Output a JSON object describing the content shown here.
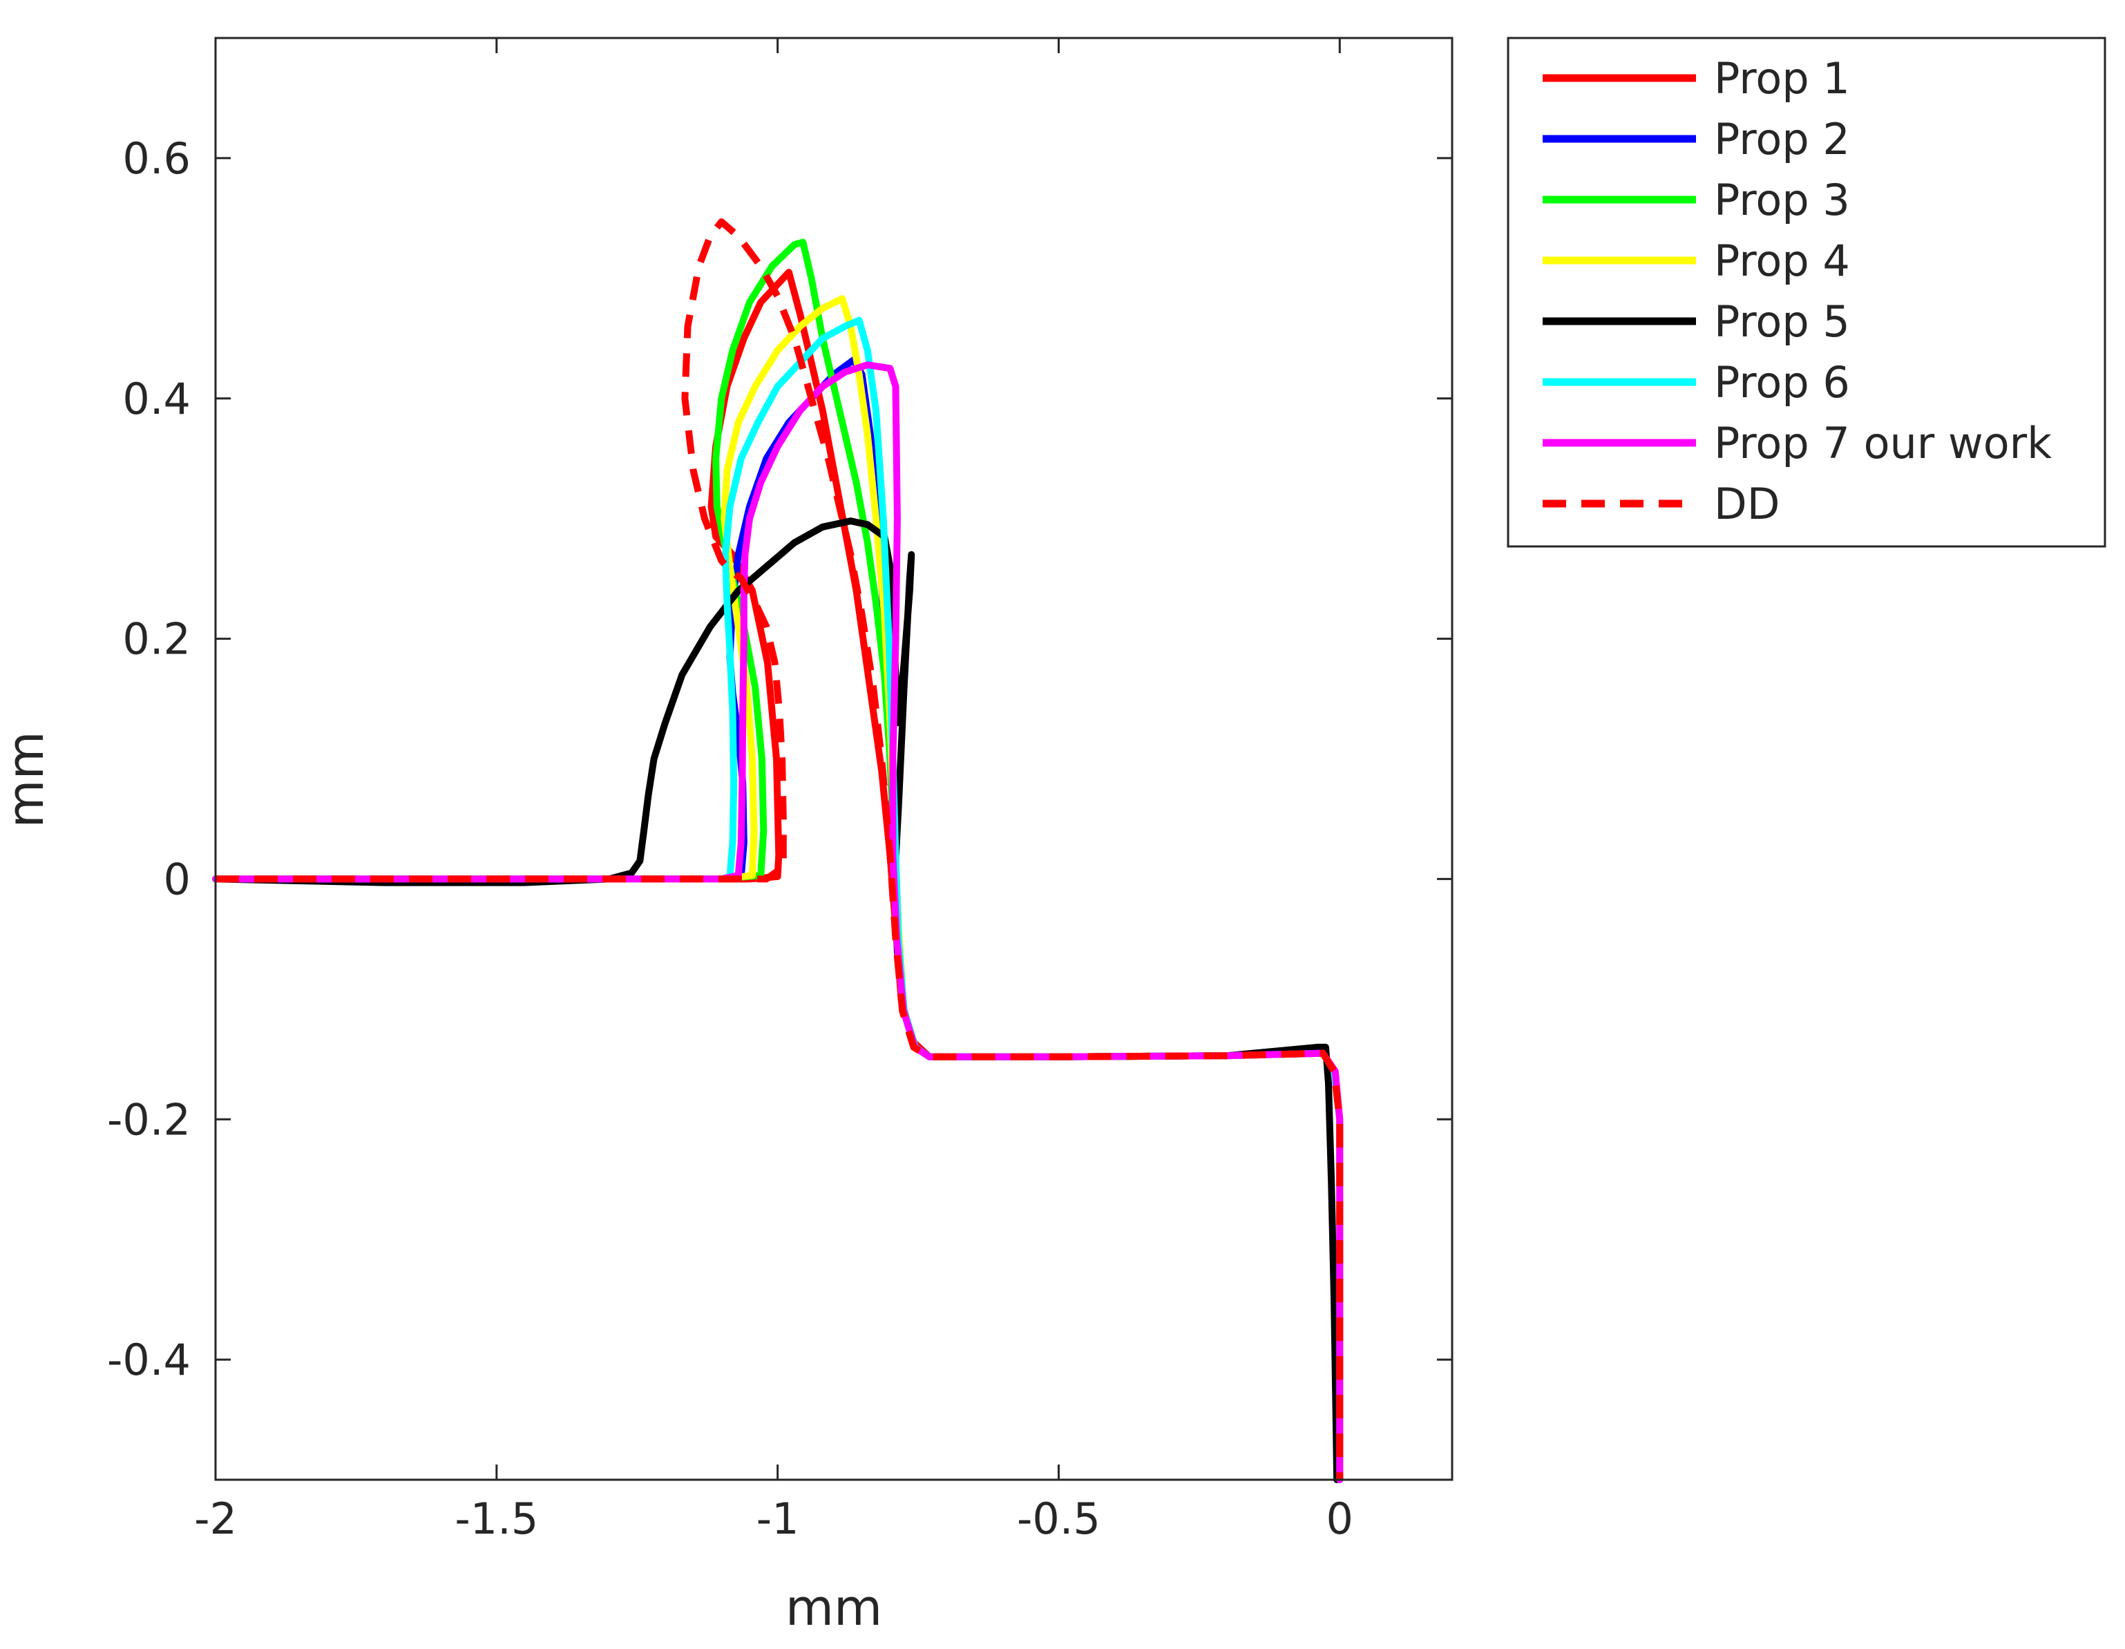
{
  "chart_data": {
    "type": "line",
    "title": "",
    "xlabel": "mm",
    "ylabel": "mm",
    "xlim": [
      -2,
      0.2
    ],
    "ylim": [
      -0.5,
      0.7
    ],
    "xticks": [
      -2,
      -1.5,
      -1,
      -0.5,
      0
    ],
    "xtick_labels": [
      "-2",
      "-1.5",
      "-1",
      "-0.5",
      "0"
    ],
    "yticks": [
      -0.4,
      -0.2,
      0,
      0.2,
      0.4,
      0.6
    ],
    "ytick_labels": [
      "-0.4",
      "-0.2",
      "0",
      "0.2",
      "0.4",
      "0.6"
    ],
    "grid": false,
    "legend_position": "outside-top-right",
    "series": [
      {
        "name": "Prop 1",
        "color": "#ff0000",
        "dash": "solid",
        "points": [
          [
            -2,
            0
          ],
          [
            -1.5,
            0
          ],
          [
            -1.2,
            0
          ],
          [
            -1.05,
            0
          ],
          [
            -1,
            0.002
          ],
          [
            -0.998,
            0.02
          ],
          [
            -1.002,
            0.1
          ],
          [
            -1.018,
            0.18
          ],
          [
            -1.045,
            0.24
          ],
          [
            -1.08,
            0.27
          ],
          [
            -1.11,
            0.285
          ],
          [
            -1.118,
            0.31
          ],
          [
            -1.11,
            0.36
          ],
          [
            -1.09,
            0.41
          ],
          [
            -1.06,
            0.45
          ],
          [
            -1.03,
            0.48
          ],
          [
            -1,
            0.495
          ],
          [
            -0.98,
            0.505
          ],
          [
            -0.96,
            0.47
          ],
          [
            -0.94,
            0.43
          ],
          [
            -0.92,
            0.39
          ],
          [
            -0.9,
            0.34
          ],
          [
            -0.88,
            0.29
          ],
          [
            -0.86,
            0.24
          ],
          [
            -0.845,
            0.19
          ],
          [
            -0.83,
            0.14
          ],
          [
            -0.815,
            0.09
          ],
          [
            -0.8,
            0.02
          ],
          [
            -0.79,
            -0.04
          ],
          [
            -0.78,
            -0.1
          ],
          [
            -0.76,
            -0.135
          ],
          [
            -0.73,
            -0.148
          ],
          [
            -0.5,
            -0.148
          ],
          [
            -0.2,
            -0.147
          ],
          [
            -0.03,
            -0.145
          ],
          [
            -0.01,
            -0.16
          ],
          [
            0,
            -0.2
          ],
          [
            0,
            -0.5
          ]
        ]
      },
      {
        "name": "Prop 2",
        "color": "#0000ff",
        "dash": "solid",
        "points": [
          [
            -2,
            0
          ],
          [
            -1.5,
            0
          ],
          [
            -1.1,
            0
          ],
          [
            -1.065,
            0.002
          ],
          [
            -1.06,
            0.03
          ],
          [
            -1.062,
            0.08
          ],
          [
            -1.07,
            0.12
          ],
          [
            -1.08,
            0.155
          ],
          [
            -1.085,
            0.185
          ],
          [
            -1.08,
            0.23
          ],
          [
            -1.07,
            0.27
          ],
          [
            -1.05,
            0.31
          ],
          [
            -1.02,
            0.35
          ],
          [
            -0.98,
            0.38
          ],
          [
            -0.94,
            0.4
          ],
          [
            -0.9,
            0.42
          ],
          [
            -0.865,
            0.432
          ],
          [
            -0.85,
            0.42
          ],
          [
            -0.835,
            0.37
          ],
          [
            -0.82,
            0.3
          ],
          [
            -0.81,
            0.2
          ],
          [
            -0.8,
            0.1
          ],
          [
            -0.792,
            0.02
          ],
          [
            -0.785,
            -0.05
          ],
          [
            -0.775,
            -0.11
          ],
          [
            -0.755,
            -0.14
          ],
          [
            -0.73,
            -0.148
          ],
          [
            -0.5,
            -0.148
          ],
          [
            -0.2,
            -0.147
          ],
          [
            -0.03,
            -0.145
          ],
          [
            -0.01,
            -0.16
          ],
          [
            0,
            -0.2
          ],
          [
            0,
            -0.5
          ]
        ]
      },
      {
        "name": "Prop 3",
        "color": "#00ff00",
        "dash": "solid",
        "points": [
          [
            -2,
            0
          ],
          [
            -1.5,
            0
          ],
          [
            -1.1,
            0
          ],
          [
            -1.03,
            0.003
          ],
          [
            -1.025,
            0.04
          ],
          [
            -1.028,
            0.1
          ],
          [
            -1.04,
            0.16
          ],
          [
            -1.06,
            0.21
          ],
          [
            -1.08,
            0.25
          ],
          [
            -1.095,
            0.28
          ],
          [
            -1.108,
            0.31
          ],
          [
            -1.11,
            0.35
          ],
          [
            -1.1,
            0.4
          ],
          [
            -1.08,
            0.44
          ],
          [
            -1.05,
            0.48
          ],
          [
            -1.01,
            0.51
          ],
          [
            -0.97,
            0.528
          ],
          [
            -0.955,
            0.53
          ],
          [
            -0.94,
            0.5
          ],
          [
            -0.92,
            0.45
          ],
          [
            -0.9,
            0.41
          ],
          [
            -0.88,
            0.37
          ],
          [
            -0.86,
            0.33
          ],
          [
            -0.84,
            0.28
          ],
          [
            -0.825,
            0.23
          ],
          [
            -0.81,
            0.17
          ],
          [
            -0.8,
            0.1
          ],
          [
            -0.792,
            0.02
          ],
          [
            -0.785,
            -0.05
          ],
          [
            -0.775,
            -0.11
          ],
          [
            -0.755,
            -0.14
          ],
          [
            -0.73,
            -0.148
          ],
          [
            -0.5,
            -0.148
          ],
          [
            -0.2,
            -0.147
          ],
          [
            -0.03,
            -0.145
          ],
          [
            -0.01,
            -0.16
          ],
          [
            0,
            -0.2
          ],
          [
            0,
            -0.5
          ]
        ]
      },
      {
        "name": "Prop 4",
        "color": "#ffff00",
        "dash": "solid",
        "points": [
          [
            -2,
            0
          ],
          [
            -1.5,
            0
          ],
          [
            -1.1,
            0
          ],
          [
            -1.045,
            0.003
          ],
          [
            -1.042,
            0.04
          ],
          [
            -1.045,
            0.1
          ],
          [
            -1.055,
            0.16
          ],
          [
            -1.07,
            0.21
          ],
          [
            -1.085,
            0.26
          ],
          [
            -1.095,
            0.3
          ],
          [
            -1.09,
            0.34
          ],
          [
            -1.07,
            0.38
          ],
          [
            -1.04,
            0.41
          ],
          [
            -1,
            0.44
          ],
          [
            -0.96,
            0.46
          ],
          [
            -0.92,
            0.475
          ],
          [
            -0.885,
            0.483
          ],
          [
            -0.87,
            0.46
          ],
          [
            -0.855,
            0.42
          ],
          [
            -0.84,
            0.37
          ],
          [
            -0.825,
            0.3
          ],
          [
            -0.81,
            0.22
          ],
          [
            -0.8,
            0.13
          ],
          [
            -0.792,
            0.04
          ],
          [
            -0.785,
            -0.04
          ],
          [
            -0.775,
            -0.11
          ],
          [
            -0.755,
            -0.14
          ],
          [
            -0.73,
            -0.148
          ],
          [
            -0.5,
            -0.148
          ],
          [
            -0.2,
            -0.147
          ],
          [
            -0.03,
            -0.145
          ],
          [
            -0.01,
            -0.16
          ],
          [
            0,
            -0.2
          ],
          [
            0,
            -0.5
          ]
        ]
      },
      {
        "name": "Prop 5",
        "color": "#000000",
        "dash": "solid",
        "points": [
          [
            -2,
            0
          ],
          [
            -1.7,
            -0.003
          ],
          [
            -1.45,
            -0.003
          ],
          [
            -1.3,
            0
          ],
          [
            -1.26,
            0.005
          ],
          [
            -1.245,
            0.015
          ],
          [
            -1.238,
            0.04
          ],
          [
            -1.23,
            0.07
          ],
          [
            -1.22,
            0.1
          ],
          [
            -1.2,
            0.13
          ],
          [
            -1.17,
            0.17
          ],
          [
            -1.12,
            0.21
          ],
          [
            -1.07,
            0.24
          ],
          [
            -1.02,
            0.26
          ],
          [
            -0.97,
            0.28
          ],
          [
            -0.92,
            0.293
          ],
          [
            -0.87,
            0.298
          ],
          [
            -0.84,
            0.295
          ],
          [
            -0.81,
            0.285
          ],
          [
            -0.8,
            0.26
          ],
          [
            -0.795,
            0.22
          ],
          [
            -0.79,
            0.17
          ],
          [
            -0.785,
            0.13
          ],
          [
            -0.775,
            0.18
          ],
          [
            -0.765,
            0.24
          ],
          [
            -0.762,
            0.27
          ],
          [
            -0.765,
            0.25
          ],
          [
            -0.775,
            0.16
          ],
          [
            -0.785,
            0.06
          ],
          [
            -0.792,
            0
          ],
          [
            -0.787,
            -0.06
          ],
          [
            -0.775,
            -0.11
          ],
          [
            -0.755,
            -0.14
          ],
          [
            -0.73,
            -0.148
          ],
          [
            -0.5,
            -0.148
          ],
          [
            -0.2,
            -0.147
          ],
          [
            -0.04,
            -0.14
          ],
          [
            -0.025,
            -0.14
          ],
          [
            -0.02,
            -0.17
          ],
          [
            -0.015,
            -0.25
          ],
          [
            -0.01,
            -0.35
          ],
          [
            -0.005,
            -0.5
          ]
        ]
      },
      {
        "name": "Prop 6",
        "color": "#00ffff",
        "dash": "solid",
        "points": [
          [
            -2,
            0
          ],
          [
            -1.5,
            0
          ],
          [
            -1.1,
            0
          ],
          [
            -1.085,
            0.002
          ],
          [
            -1.08,
            0.03
          ],
          [
            -1.078,
            0.08
          ],
          [
            -1.08,
            0.14
          ],
          [
            -1.085,
            0.19
          ],
          [
            -1.09,
            0.23
          ],
          [
            -1.093,
            0.27
          ],
          [
            -1.085,
            0.31
          ],
          [
            -1.065,
            0.35
          ],
          [
            -1.035,
            0.38
          ],
          [
            -1,
            0.41
          ],
          [
            -0.96,
            0.43
          ],
          [
            -0.92,
            0.45
          ],
          [
            -0.88,
            0.46
          ],
          [
            -0.855,
            0.465
          ],
          [
            -0.84,
            0.44
          ],
          [
            -0.825,
            0.39
          ],
          [
            -0.812,
            0.3
          ],
          [
            -0.802,
            0.2
          ],
          [
            -0.795,
            0.1
          ],
          [
            -0.79,
            0.02
          ],
          [
            -0.785,
            -0.05
          ],
          [
            -0.775,
            -0.11
          ],
          [
            -0.755,
            -0.14
          ],
          [
            -0.73,
            -0.148
          ],
          [
            -0.5,
            -0.148
          ],
          [
            -0.2,
            -0.147
          ],
          [
            -0.03,
            -0.145
          ],
          [
            -0.01,
            -0.16
          ],
          [
            0,
            -0.2
          ],
          [
            0,
            -0.5
          ]
        ]
      },
      {
        "name": "Prop 7 our work",
        "color": "#ff00ff",
        "dash": "solid",
        "points": [
          [
            -2,
            0
          ],
          [
            -1.5,
            0
          ],
          [
            -1.1,
            0
          ],
          [
            -1.07,
            0.003
          ],
          [
            -1.065,
            0.03
          ],
          [
            -1.063,
            0.08
          ],
          [
            -1.062,
            0.14
          ],
          [
            -1.06,
            0.2
          ],
          [
            -1.06,
            0.24
          ],
          [
            -1.058,
            0.27
          ],
          [
            -1.05,
            0.3
          ],
          [
            -1.03,
            0.33
          ],
          [
            -1,
            0.36
          ],
          [
            -0.96,
            0.39
          ],
          [
            -0.92,
            0.41
          ],
          [
            -0.88,
            0.422
          ],
          [
            -0.84,
            0.428
          ],
          [
            -0.8,
            0.425
          ],
          [
            -0.79,
            0.41
          ],
          [
            -0.787,
            0.3
          ],
          [
            -0.79,
            0.2
          ],
          [
            -0.795,
            0.1
          ],
          [
            -0.795,
            0.02
          ],
          [
            -0.788,
            -0.05
          ],
          [
            -0.776,
            -0.11
          ],
          [
            -0.756,
            -0.14
          ],
          [
            -0.73,
            -0.148
          ],
          [
            -0.5,
            -0.148
          ],
          [
            -0.2,
            -0.147
          ],
          [
            -0.03,
            -0.145
          ],
          [
            -0.008,
            -0.16
          ],
          [
            0,
            -0.2
          ],
          [
            0,
            -0.5
          ]
        ]
      },
      {
        "name": "DD",
        "color": "#ff0000",
        "dash": "dashed",
        "points": [
          [
            -2,
            0
          ],
          [
            -1.5,
            0
          ],
          [
            -1.3,
            0
          ],
          [
            -1.1,
            0
          ],
          [
            -1.02,
            0
          ],
          [
            -0.99,
            0.01
          ],
          [
            -0.99,
            0.05
          ],
          [
            -0.992,
            0.1
          ],
          [
            -0.997,
            0.14
          ],
          [
            -1.005,
            0.18
          ],
          [
            -1.02,
            0.21
          ],
          [
            -1.04,
            0.23
          ],
          [
            -1.065,
            0.25
          ],
          [
            -1.08,
            0.255
          ],
          [
            -1.1,
            0.265
          ],
          [
            -1.13,
            0.3
          ],
          [
            -1.15,
            0.34
          ],
          [
            -1.165,
            0.4
          ],
          [
            -1.16,
            0.46
          ],
          [
            -1.14,
            0.51
          ],
          [
            -1.12,
            0.535
          ],
          [
            -1.1,
            0.547
          ],
          [
            -1.07,
            0.535
          ],
          [
            -1.03,
            0.51
          ],
          [
            -1,
            0.485
          ],
          [
            -0.97,
            0.45
          ],
          [
            -0.94,
            0.4
          ],
          [
            -0.91,
            0.35
          ],
          [
            -0.89,
            0.31
          ],
          [
            -0.87,
            0.27
          ],
          [
            -0.85,
            0.22
          ],
          [
            -0.83,
            0.16
          ],
          [
            -0.815,
            0.1
          ],
          [
            -0.8,
            0.02
          ],
          [
            -0.79,
            -0.05
          ],
          [
            -0.778,
            -0.11
          ],
          [
            -0.758,
            -0.14
          ],
          [
            -0.73,
            -0.148
          ],
          [
            -0.5,
            -0.148
          ],
          [
            -0.2,
            -0.147
          ],
          [
            -0.03,
            -0.145
          ],
          [
            -0.01,
            -0.16
          ],
          [
            0,
            -0.2
          ],
          [
            0,
            -0.5
          ]
        ]
      }
    ]
  }
}
